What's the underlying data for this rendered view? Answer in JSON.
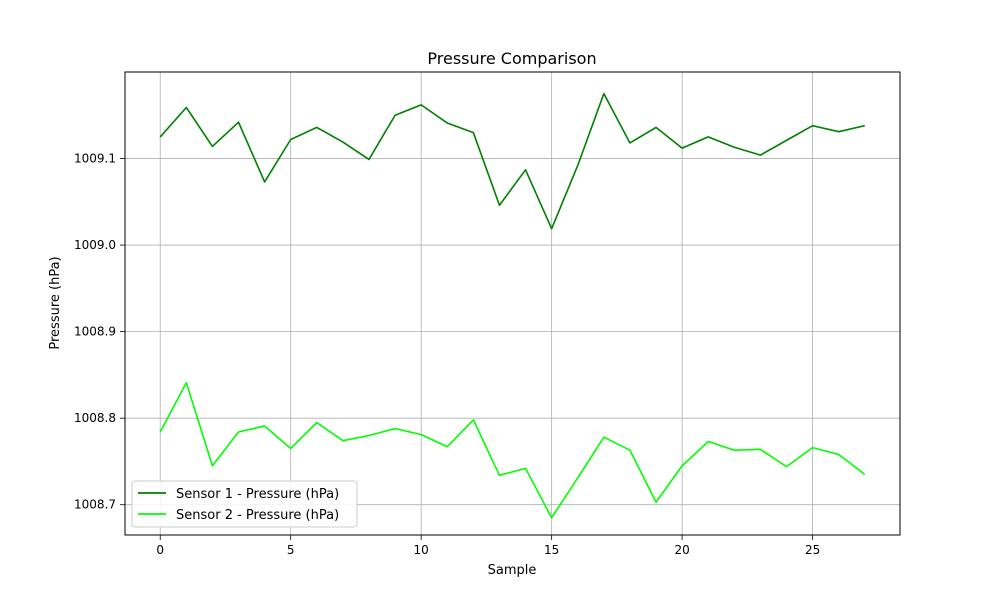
{
  "chart_data": {
    "type": "line",
    "title": "Pressure Comparison",
    "xlabel": "Sample",
    "ylabel": "Pressure (hPa)",
    "xlim": [
      -1.35,
      28.35
    ],
    "ylim": [
      1008.665,
      1009.2
    ],
    "xticks": [
      0,
      5,
      10,
      15,
      20,
      25
    ],
    "xtick_labels": [
      "0",
      "5",
      "10",
      "15",
      "20",
      "25"
    ],
    "yticks": [
      1008.7,
      1008.8,
      1008.9,
      1009.0,
      1009.1
    ],
    "ytick_labels": [
      "1008.7",
      "1008.8",
      "1008.9",
      "1009.0",
      "1009.1"
    ],
    "grid": true,
    "legend_position": "lower-left",
    "x": [
      0,
      1,
      2,
      3,
      4,
      5,
      6,
      7,
      8,
      9,
      10,
      11,
      12,
      13,
      14,
      15,
      16,
      17,
      18,
      19,
      20,
      21,
      22,
      23,
      24,
      25,
      26,
      27
    ],
    "series": [
      {
        "name": "Sensor 1 - Pressure (hPa)",
        "color": "#008000",
        "values": [
          1009.125,
          1009.159,
          1009.114,
          1009.142,
          1009.073,
          1009.122,
          1009.136,
          1009.119,
          1009.099,
          1009.15,
          1009.162,
          1009.141,
          1009.13,
          1009.046,
          1009.087,
          1009.019,
          1009.092,
          1009.175,
          1009.118,
          1009.136,
          1009.112,
          1009.125,
          1009.113,
          1009.104,
          1009.121,
          1009.138,
          1009.131,
          1009.138
        ]
      },
      {
        "name": "Sensor 2 - Pressure (hPa)",
        "color": "#00ff00",
        "values": [
          1008.784,
          1008.841,
          1008.745,
          1008.784,
          1008.791,
          1008.765,
          1008.795,
          1008.774,
          1008.78,
          1008.788,
          1008.781,
          1008.767,
          1008.798,
          1008.734,
          1008.742,
          1008.685,
          1008.731,
          1008.778,
          1008.763,
          1008.703,
          1008.745,
          1008.773,
          1008.763,
          1008.764,
          1008.744,
          1008.766,
          1008.758,
          1008.735
        ]
      }
    ]
  }
}
